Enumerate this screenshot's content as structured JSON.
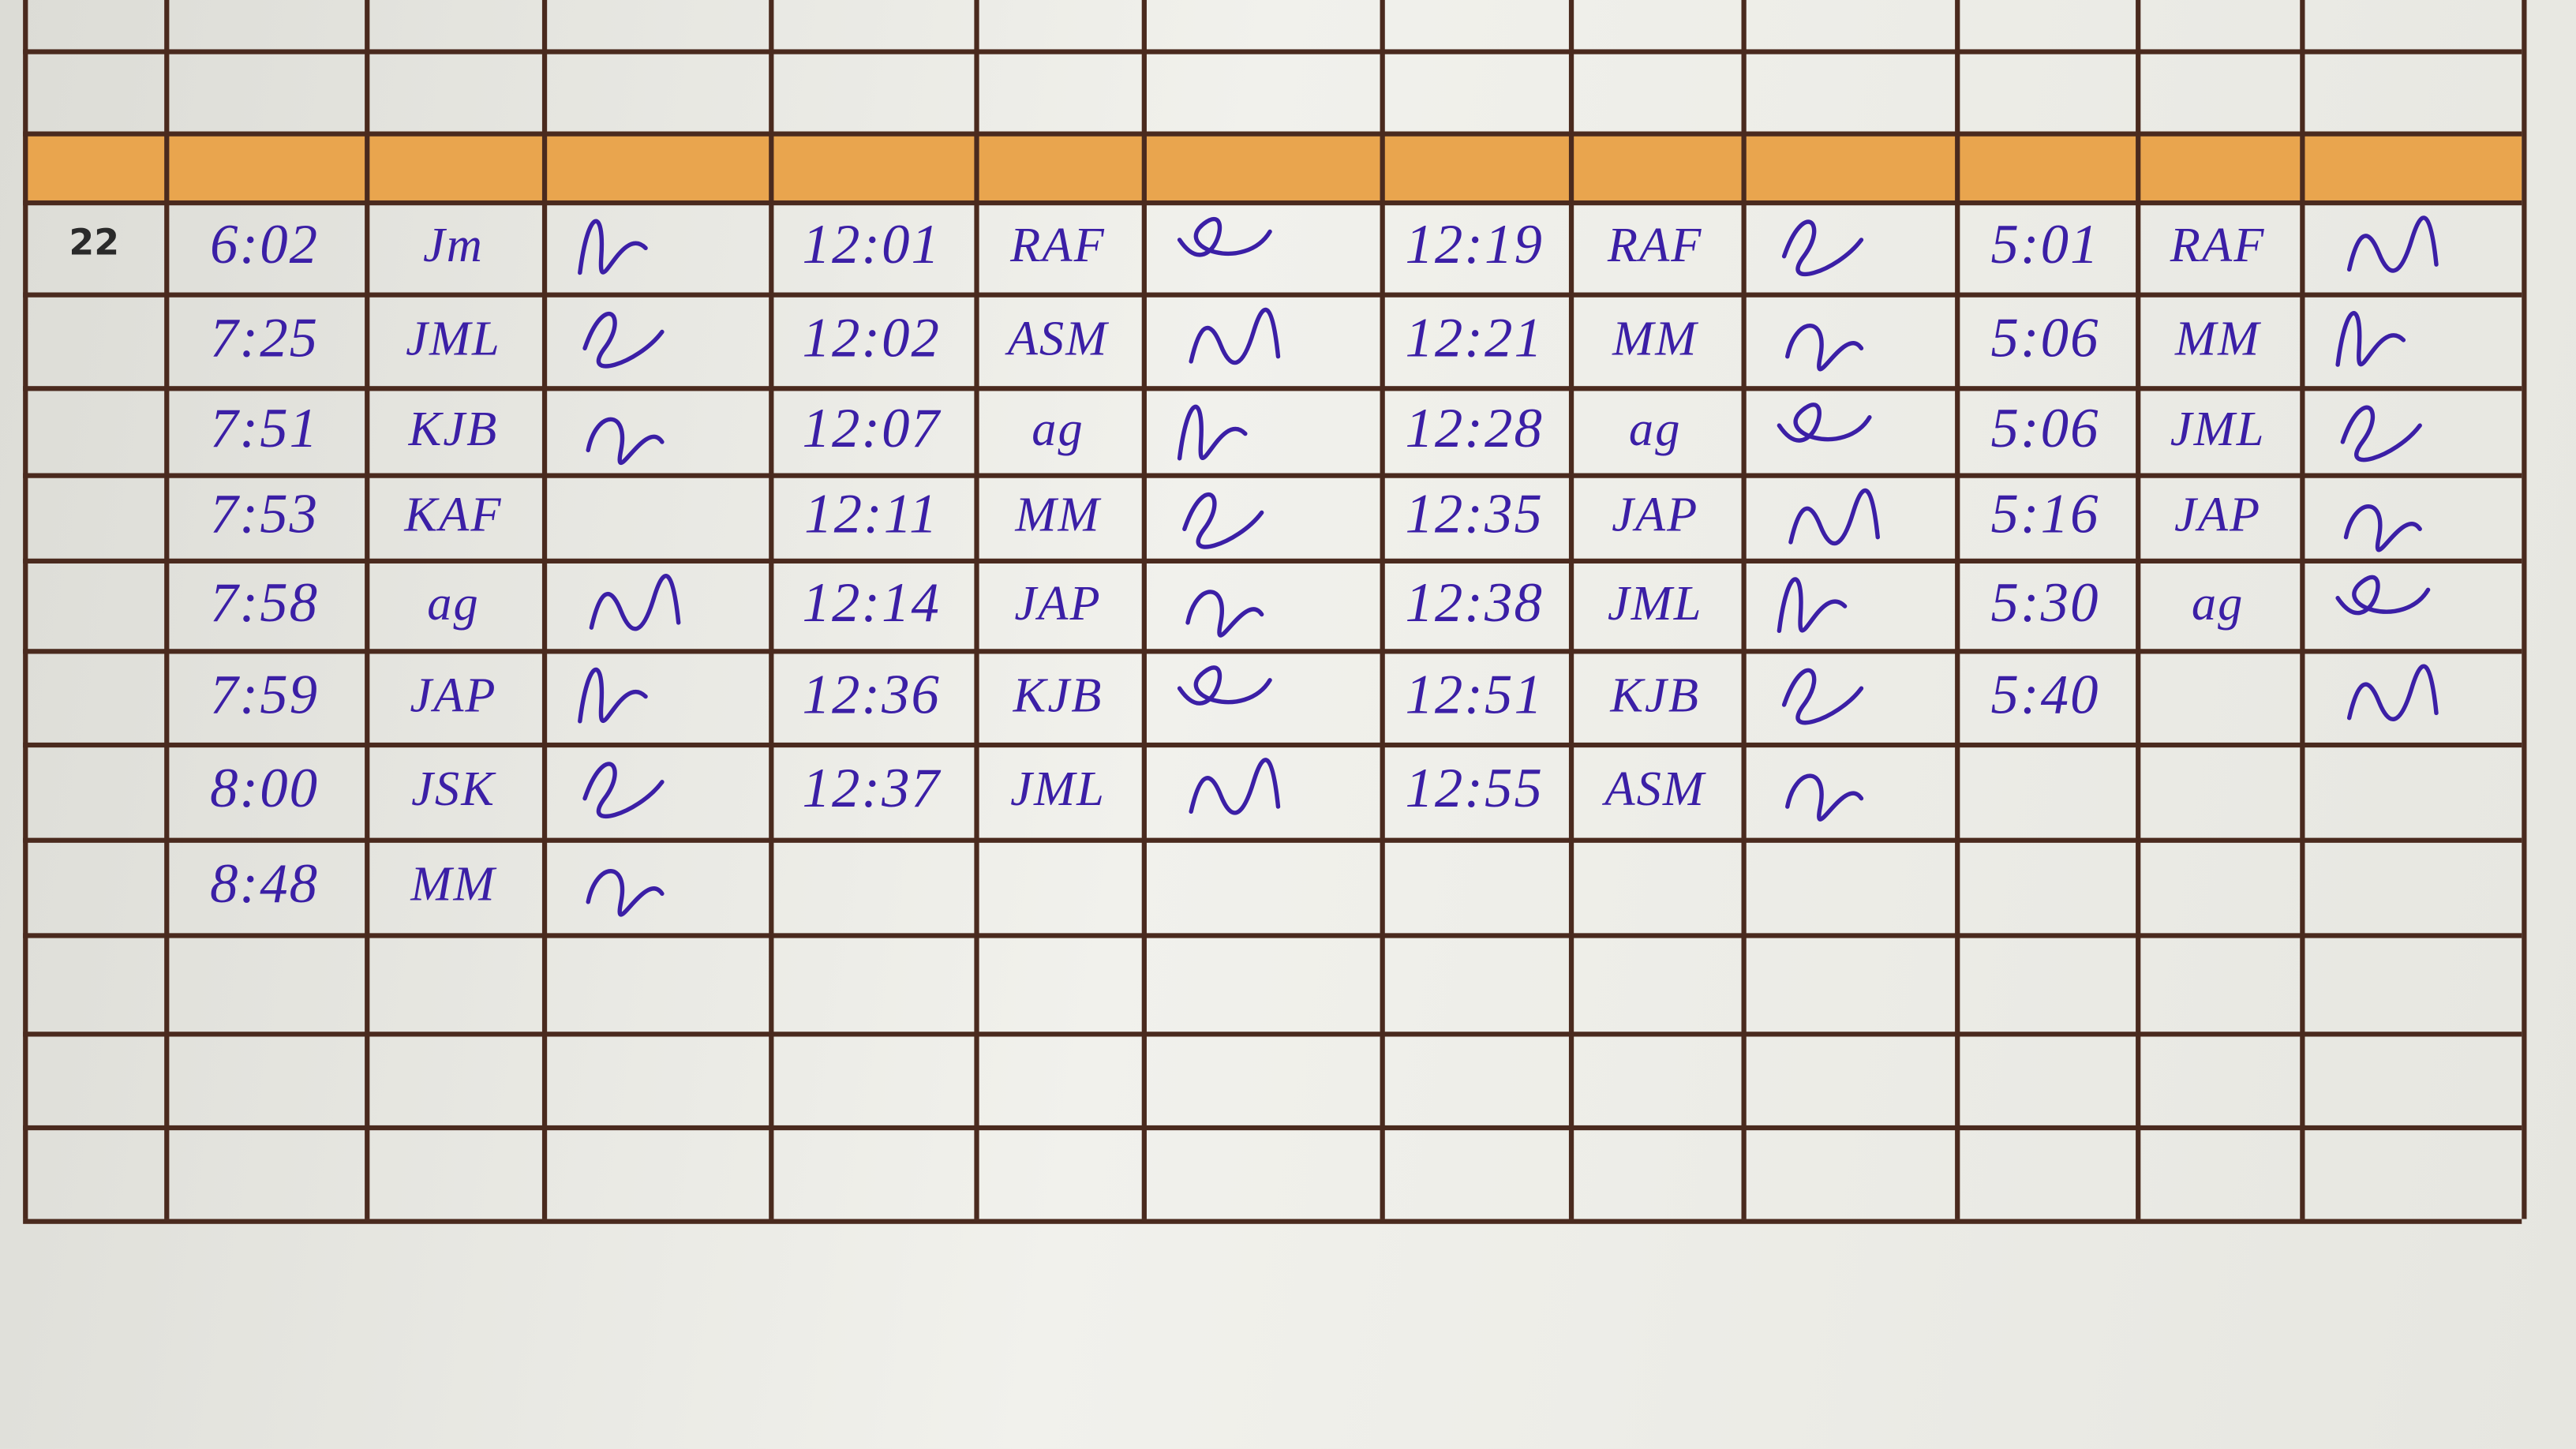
{
  "sheet": {
    "day_number": "22",
    "ink_color": "#3b1fa6",
    "band_color": "#e9a54e",
    "line_color": "#4a2a1e",
    "groups": [
      {
        "entries": [
          {
            "time": "6:02",
            "initials": "Jm",
            "signed": true
          },
          {
            "time": "7:25",
            "initials": "JML",
            "signed": true
          },
          {
            "time": "7:51",
            "initials": "KJB",
            "signed": true
          },
          {
            "time": "7:53",
            "initials": "KAF",
            "signed": false
          },
          {
            "time": "7:58",
            "initials": "ag",
            "signed": true
          },
          {
            "time": "7:59",
            "initials": "JAP",
            "signed": true
          },
          {
            "time": "8:00",
            "initials": "JSK",
            "signed": true
          },
          {
            "time": "8:48",
            "initials": "MM",
            "signed": true
          }
        ]
      },
      {
        "entries": [
          {
            "time": "12:01",
            "initials": "RAF",
            "signed": true
          },
          {
            "time": "12:02",
            "initials": "ASM",
            "signed": true
          },
          {
            "time": "12:07",
            "initials": "ag",
            "signed": true
          },
          {
            "time": "12:11",
            "initials": "MM",
            "signed": true
          },
          {
            "time": "12:14",
            "initials": "JAP",
            "signed": true
          },
          {
            "time": "12:36",
            "initials": "KJB",
            "signed": true
          },
          {
            "time": "12:37",
            "initials": "JML",
            "signed": true
          }
        ]
      },
      {
        "entries": [
          {
            "time": "12:19",
            "initials": "RAF",
            "signed": true
          },
          {
            "time": "12:21",
            "initials": "MM",
            "signed": true
          },
          {
            "time": "12:28",
            "initials": "ag",
            "signed": true
          },
          {
            "time": "12:35",
            "initials": "JAP",
            "signed": true
          },
          {
            "time": "12:38",
            "initials": "JML",
            "signed": true
          },
          {
            "time": "12:51",
            "initials": "KJB",
            "signed": true
          },
          {
            "time": "12:55",
            "initials": "ASM",
            "signed": true
          }
        ]
      },
      {
        "entries": [
          {
            "time": "5:01",
            "initials": "RAF",
            "signed": true
          },
          {
            "time": "5:06",
            "initials": "MM",
            "signed": true
          },
          {
            "time": "5:06",
            "initials": "JML",
            "signed": true
          },
          {
            "time": "5:16",
            "initials": "JAP",
            "signed": true
          },
          {
            "time": "5:30",
            "initials": "ag",
            "signed": true
          },
          {
            "time": "5:40",
            "initials": "",
            "signed": true
          }
        ]
      }
    ]
  }
}
